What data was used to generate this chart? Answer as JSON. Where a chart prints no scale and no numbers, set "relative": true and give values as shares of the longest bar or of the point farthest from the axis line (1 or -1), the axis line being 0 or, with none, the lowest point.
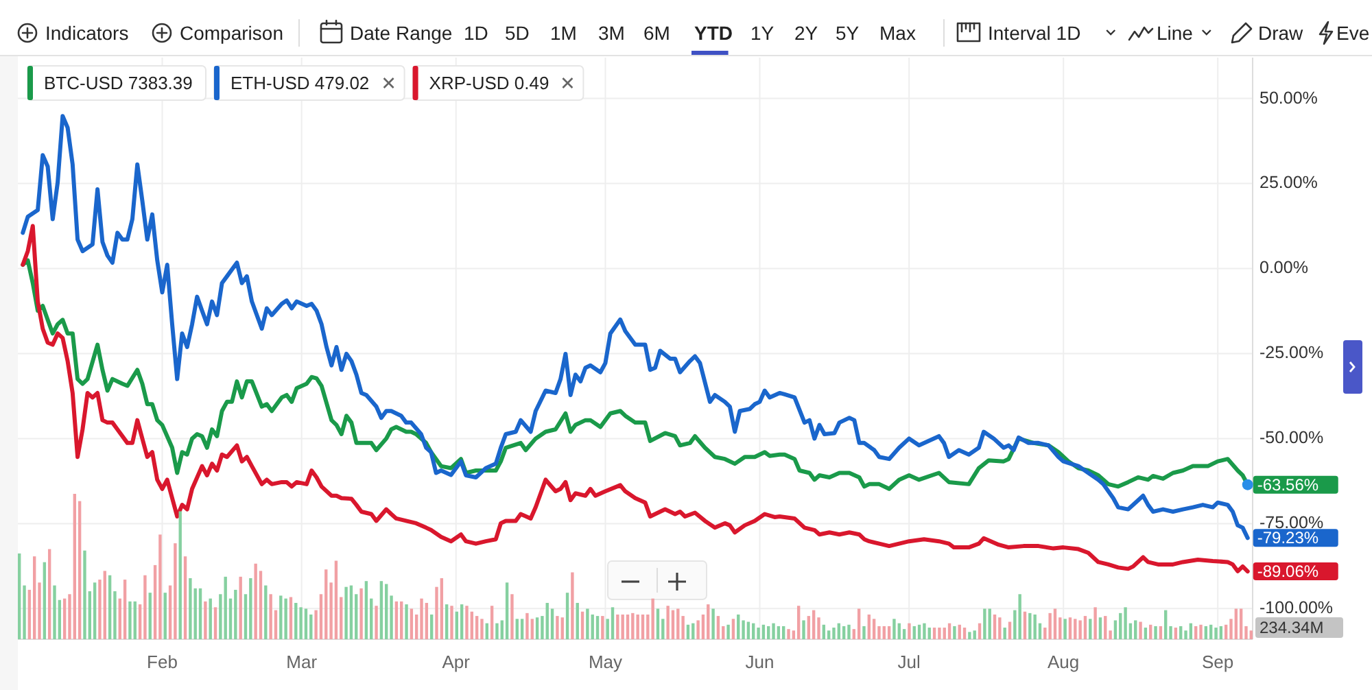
{
  "chart_data": [
    {
      "type": "line",
      "annotations": [
        "Indicators",
        "Comparison",
        "Date Range",
        "1D",
        "5D",
        "1M",
        "3M",
        "6M",
        "YTD",
        "1Y",
        "2Y",
        "5Y",
        "Max",
        "Interval 1D",
        "Line",
        "Draw",
        "Eve",
        {
          "text": "-63.56%",
          "x": "--09-07",
          "y": -63.56
        },
        {
          "text": "-79.23%",
          "x": "--09-07",
          "y": -79.23
        },
        {
          "text": "-89.06%",
          "x": "--09-07",
          "y": -89.06
        }
      ],
      "xlim": [
        "--01-03",
        "--09-08"
      ],
      "xticks": [
        {
          "value": "--02-01",
          "label": "Feb"
        },
        {
          "value": "--03-01",
          "label": "Mar"
        },
        {
          "value": "--04-01",
          "label": "Apr"
        },
        {
          "value": "--05-01",
          "label": "May"
        },
        {
          "value": "--06-01",
          "label": "Jun"
        },
        {
          "value": "--07-01",
          "label": "Jul"
        },
        {
          "value": "--08-01",
          "label": "Aug"
        },
        {
          "value": "--09-01",
          "label": "Sep"
        }
      ],
      "ylim": [
        -109,
        62
      ],
      "yticks": [
        {
          "value": 50,
          "label": "50.00%"
        },
        {
          "value": 25,
          "label": "25.00%"
        },
        {
          "value": 0,
          "label": "0.00%"
        },
        {
          "value": -25,
          "label": "-25.00%"
        },
        {
          "value": -50,
          "label": "-50.00%"
        },
        {
          "value": -75,
          "label": "-75.00%"
        },
        {
          "value": -100,
          "label": "-100.00%"
        }
      ],
      "grid": true,
      "legend": "top left",
      "series": [
        {
          "name": "BTC-USD 7383.39",
          "color": "#1a9a4a",
          "x": [
            "--01-04",
            "--01-05",
            "--01-06",
            "--01-07",
            "--01-08",
            "--01-09",
            "--01-10",
            "--01-11",
            "--01-12",
            "--01-13",
            "--01-14",
            "--01-15",
            "--01-16",
            "--01-17",
            "--01-19",
            "--01-20",
            "--01-21",
            "--01-22",
            "--01-24",
            "--01-25",
            "--01-27",
            "--01-28",
            "--01-29",
            "--01-30",
            "--01-31",
            "--02-01",
            "--02-03",
            "--02-04",
            "--02-05",
            "--02-06",
            "--02-07",
            "--02-08",
            "--02-09",
            "--02-10",
            "--02-11",
            "--02-12",
            "--02-13",
            "--02-14",
            "--02-15",
            "--02-16",
            "--02-17",
            "--02-18",
            "--02-19",
            "--02-21",
            "--02-22",
            "--02-23",
            "--02-25",
            "--02-26",
            "--02-27",
            "--02-28",
            "--03-02",
            "--03-03",
            "--03-04",
            "--03-05",
            "--03-07",
            "--03-08",
            "--03-09",
            "--03-10",
            "--03-11",
            "--03-12",
            "--03-14",
            "--03-15",
            "--03-16",
            "--03-18",
            "--03-19",
            "--03-20",
            "--03-22",
            "--03-23",
            "--03-24",
            "--03-26",
            "--03-27",
            "--03-29",
            "--03-31",
            "--04-02",
            "--04-03",
            "--04-05",
            "--04-07",
            "--04-09",
            "--04-10",
            "--04-11",
            "--04-14",
            "--04-15",
            "--04-17",
            "--04-19",
            "--04-21",
            "--04-23",
            "--04-24",
            "--04-25",
            "--04-27",
            "--04-28",
            "--04-30",
            "--05-02",
            "--05-04",
            "--05-05",
            "--05-07",
            "--05-09",
            "--05-10",
            "--05-13",
            "--05-15",
            "--05-16",
            "--05-18",
            "--05-19",
            "--05-21",
            "--05-23",
            "--05-25",
            "--05-27",
            "--05-29",
            "--05-31",
            "--06-02",
            "--06-03",
            "--06-05",
            "--06-06",
            "--06-08",
            "--06-09",
            "--06-11",
            "--06-12",
            "--06-13",
            "--06-15",
            "--06-17",
            "--06-19",
            "--06-21",
            "--06-22",
            "--06-23",
            "--06-25",
            "--06-27",
            "--06-29",
            "--07-01",
            "--07-03",
            "--07-07",
            "--07-09",
            "--07-13",
            "--07-15",
            "--07-17",
            "--07-20",
            "--07-21",
            "--07-23",
            "--07-26",
            "--07-29",
            "--07-31",
            "--08-02",
            "--08-04",
            "--08-06",
            "--08-08",
            "--08-10",
            "--08-12",
            "--08-14",
            "--08-16",
            "--08-18",
            "--08-19",
            "--08-21",
            "--08-23",
            "--08-25",
            "--08-27",
            "--08-30",
            "--09-01",
            "--09-03",
            "--09-05",
            "--09-06",
            "--09-07"
          ],
          "values": [
            1.1,
            2.4,
            -4.3,
            -12.4,
            -11.0,
            -15.1,
            -19.1,
            -16.4,
            -15.1,
            -19.1,
            -19.1,
            -32.5,
            -33.9,
            -32.5,
            -22.4,
            -29.8,
            -35.9,
            -32.5,
            -33.9,
            -34.5,
            -29.8,
            -33.9,
            -39.9,
            -39.9,
            -44.6,
            -46.0,
            -52.7,
            -60.1,
            -54.0,
            -54.7,
            -50.0,
            -48.7,
            -49.3,
            -52.7,
            -47.3,
            -49.3,
            -41.9,
            -39.2,
            -39.2,
            -33.2,
            -37.9,
            -33.2,
            -33.2,
            -40.6,
            -39.9,
            -41.9,
            -37.9,
            -37.2,
            -39.2,
            -35.2,
            -33.9,
            -31.9,
            -32.3,
            -34.5,
            -44.6,
            -46.0,
            -48.7,
            -43.3,
            -45.3,
            -51.3,
            -51.3,
            -51.3,
            -53.4,
            -50.0,
            -47.3,
            -46.6,
            -48.0,
            -48.0,
            -48.7,
            -51.3,
            -54.0,
            -58.1,
            -58.7,
            -56.0,
            -60.1,
            -59.4,
            -59.4,
            -59.4,
            -56.7,
            -52.7,
            -51.3,
            -53.4,
            -50.0,
            -48.0,
            -47.3,
            -42.6,
            -48.0,
            -46.0,
            -44.6,
            -44.6,
            -46.6,
            -42.6,
            -41.9,
            -43.3,
            -45.3,
            -45.3,
            -50.7,
            -48.4,
            -49.3,
            -52.0,
            -51.3,
            -49.3,
            -52.7,
            -55.4,
            -56.0,
            -57.4,
            -55.4,
            -55.4,
            -54.0,
            -55.1,
            -54.7,
            -54.7,
            -56.0,
            -59.4,
            -60.1,
            -62.1,
            -60.8,
            -61.4,
            -60.1,
            -60.1,
            -61.4,
            -64.1,
            -63.4,
            -63.4,
            -64.8,
            -62.1,
            -60.8,
            -62.1,
            -60.1,
            -62.8,
            -63.4,
            -58.7,
            -56.4,
            -56.7,
            -56.0,
            -50.0,
            -51.3,
            -52.0,
            -54.0,
            -56.7,
            -58.7,
            -59.4,
            -60.8,
            -63.4,
            -64.1,
            -62.8,
            -61.4,
            -62.1,
            -61.0,
            -61.8,
            -60.1,
            -59.4,
            -58.1,
            -58.1,
            -56.7,
            -56.0,
            -59.4,
            -60.8,
            -63.56
          ]
        },
        {
          "name": "ETH-USD 479.02",
          "color": "#1a66cc",
          "x": [
            "--01-04",
            "--01-05",
            "--01-07",
            "--01-08",
            "--01-09",
            "--01-10",
            "--01-11",
            "--01-12",
            "--01-13",
            "--01-14",
            "--01-15",
            "--01-16",
            "--01-18",
            "--01-19",
            "--01-20",
            "--01-21",
            "--01-22",
            "--01-23",
            "--01-24",
            "--01-25",
            "--01-26",
            "--01-27",
            "--01-28",
            "--01-29",
            "--01-30",
            "--01-31",
            "--02-01",
            "--02-02",
            "--02-03",
            "--02-04",
            "--02-05",
            "--02-06",
            "--02-07",
            "--02-08",
            "--02-09",
            "--02-10",
            "--02-11",
            "--02-12",
            "--02-13",
            "--02-14",
            "--02-16",
            "--02-17",
            "--02-18",
            "--02-19",
            "--02-21",
            "--02-22",
            "--02-23",
            "--02-25",
            "--02-26",
            "--02-27",
            "--02-28",
            "--03-02",
            "--03-03",
            "--03-04",
            "--03-05",
            "--03-06",
            "--03-07",
            "--03-08",
            "--03-09",
            "--03-10",
            "--03-11",
            "--03-12",
            "--03-13",
            "--03-14",
            "--03-16",
            "--03-17",
            "--03-18",
            "--03-19",
            "--03-21",
            "--03-22",
            "--03-23",
            "--03-25",
            "--03-26",
            "--03-27",
            "--03-28",
            "--03-29",
            "--03-31",
            "--04-02",
            "--04-03",
            "--04-05",
            "--04-07",
            "--04-09",
            "--04-10",
            "--04-11",
            "--04-13",
            "--04-14",
            "--04-16",
            "--04-17",
            "--04-19",
            "--04-21",
            "--04-22",
            "--04-23",
            "--04-24",
            "--04-25",
            "--04-26",
            "--04-27",
            "--04-28",
            "--04-30",
            "--05-01",
            "--05-02",
            "--05-04",
            "--05-05",
            "--05-07",
            "--05-09",
            "--05-10",
            "--05-11",
            "--05-12",
            "--05-14",
            "--05-15",
            "--05-16",
            "--05-18",
            "--05-19",
            "--05-20",
            "--05-22",
            "--05-23",
            "--05-25",
            "--05-26",
            "--05-27",
            "--05-28",
            "--05-30",
            "--05-31",
            "--06-01",
            "--06-02",
            "--06-03",
            "--06-05",
            "--06-06",
            "--06-08",
            "--06-10",
            "--06-11",
            "--06-12",
            "--06-13",
            "--06-14",
            "--06-16",
            "--06-17",
            "--06-19",
            "--06-20",
            "--06-21",
            "--06-22",
            "--06-24",
            "--06-25",
            "--06-27",
            "--06-29",
            "--07-01",
            "--07-03",
            "--07-07",
            "--07-08",
            "--07-09",
            "--07-11",
            "--07-13",
            "--07-15",
            "--07-16",
            "--07-18",
            "--07-20",
            "--07-21",
            "--07-22",
            "--07-23",
            "--07-25",
            "--07-27",
            "--07-29",
            "--07-31",
            "--08-01",
            "--08-04",
            "--08-06",
            "--08-08",
            "--08-09",
            "--08-11",
            "--08-12",
            "--08-14",
            "--08-15",
            "--08-17",
            "--08-18",
            "--08-19",
            "--08-21",
            "--08-23",
            "--08-25",
            "--08-27",
            "--08-29",
            "--08-31",
            "--09-01",
            "--09-03",
            "--09-04",
            "--09-05",
            "--09-06",
            "--09-07"
          ],
          "values": [
            10.5,
            15.2,
            17.2,
            33.3,
            30.0,
            14.5,
            25.3,
            44.8,
            41.4,
            30.6,
            8.5,
            5.1,
            7.1,
            23.3,
            7.8,
            3.8,
            1.7,
            10.5,
            8.5,
            8.5,
            14.5,
            30.6,
            19.9,
            8.5,
            15.9,
            2.4,
            -7.0,
            1.1,
            -16.4,
            -32.5,
            -19.1,
            -23.1,
            -16.4,
            -8.3,
            -12.4,
            -16.4,
            -9.7,
            -13.7,
            -4.3,
            -2.3,
            1.7,
            -4.3,
            -2.3,
            -9.7,
            -17.7,
            -11.7,
            -13.7,
            -10.4,
            -9.4,
            -11.7,
            -9.7,
            -11.0,
            -10.4,
            -12.4,
            -16.4,
            -23.1,
            -28.5,
            -23.1,
            -29.8,
            -25.1,
            -27.2,
            -31.2,
            -36.6,
            -37.2,
            -40.6,
            -43.9,
            -41.9,
            -41.9,
            -43.3,
            -45.3,
            -45.3,
            -48.7,
            -52.7,
            -54.0,
            -60.1,
            -59.4,
            -60.7,
            -56.7,
            -60.8,
            -61.4,
            -58.7,
            -57.4,
            -52.7,
            -48.7,
            -48.0,
            -44.6,
            -48.0,
            -41.9,
            -35.9,
            -36.6,
            -32.5,
            -25.1,
            -37.2,
            -31.2,
            -33.2,
            -29.2,
            -28.5,
            -30.5,
            -27.8,
            -19.1,
            -15.0,
            -18.4,
            -22.4,
            -22.4,
            -29.8,
            -29.2,
            -24.2,
            -26.5,
            -26.5,
            -30.5,
            -27.2,
            -25.8,
            -27.8,
            -39.2,
            -37.2,
            -39.2,
            -40.6,
            -48.0,
            -41.9,
            -41.3,
            -39.9,
            -39.2,
            -35.9,
            -37.9,
            -36.6,
            -37.0,
            -37.9,
            -45.3,
            -44.6,
            -50.0,
            -46.0,
            -48.7,
            -48.4,
            -45.3,
            -43.9,
            -44.6,
            -51.3,
            -51.3,
            -53.4,
            -55.4,
            -56.0,
            -52.7,
            -50.0,
            -52.0,
            -49.3,
            -51.3,
            -55.4,
            -53.4,
            -54.7,
            -52.7,
            -48.0,
            -50.0,
            -52.7,
            -52.0,
            -53.4,
            -49.7,
            -51.3,
            -51.3,
            -52.0,
            -55.4,
            -56.7,
            -58.1,
            -60.1,
            -62.1,
            -63.4,
            -67.5,
            -70.2,
            -70.8,
            -69.5,
            -66.8,
            -69.5,
            -71.5,
            -70.8,
            -71.5,
            -70.8,
            -70.2,
            -69.5,
            -70.2,
            -68.8,
            -69.5,
            -71.5,
            -75.5,
            -76.2,
            -79.23
          ]
        },
        {
          "name": "XRP-USD 0.49",
          "color": "#d9172d",
          "x": [
            "--01-04",
            "--01-05",
            "--01-06",
            "--01-07",
            "--01-08",
            "--01-09",
            "--01-10",
            "--01-11",
            "--01-12",
            "--01-13",
            "--01-14",
            "--01-15",
            "--01-16",
            "--01-17",
            "--01-18",
            "--01-19",
            "--01-20",
            "--01-21",
            "--01-22",
            "--01-23",
            "--01-25",
            "--01-26",
            "--01-27",
            "--01-28",
            "--01-29",
            "--01-30",
            "--01-31",
            "--02-01",
            "--02-02",
            "--02-04",
            "--02-05",
            "--02-06",
            "--02-07",
            "--02-09",
            "--02-10",
            "--02-11",
            "--02-12",
            "--02-13",
            "--02-14",
            "--02-16",
            "--02-17",
            "--02-18",
            "--02-19",
            "--02-21",
            "--02-22",
            "--02-23",
            "--02-25",
            "--02-26",
            "--02-27",
            "--02-28",
            "--03-02",
            "--03-03",
            "--03-04",
            "--03-05",
            "--03-07",
            "--03-08",
            "--03-09",
            "--03-11",
            "--03-12",
            "--03-13",
            "--03-15",
            "--03-16",
            "--03-18",
            "--03-19",
            "--03-20",
            "--03-22",
            "--03-24",
            "--03-26",
            "--03-27",
            "--03-29",
            "--03-31",
            "--04-02",
            "--04-03",
            "--04-05",
            "--04-07",
            "--04-09",
            "--04-10",
            "--04-11",
            "--04-13",
            "--04-14",
            "--04-16",
            "--04-17",
            "--04-19",
            "--04-21",
            "--04-22",
            "--04-23",
            "--04-24",
            "--04-25",
            "--04-27",
            "--04-28",
            "--04-29",
            "--05-01",
            "--05-04",
            "--05-05",
            "--05-07",
            "--05-09",
            "--05-10",
            "--05-13",
            "--05-15",
            "--05-16",
            "--05-17",
            "--05-19",
            "--05-21",
            "--05-23",
            "--05-25",
            "--05-26",
            "--05-27",
            "--05-29",
            "--05-31",
            "--06-02",
            "--06-04",
            "--06-05",
            "--06-08",
            "--06-10",
            "--06-12",
            "--06-13",
            "--06-15",
            "--06-17",
            "--06-19",
            "--06-21",
            "--06-22",
            "--06-23",
            "--06-25",
            "--06-27",
            "--06-29",
            "--07-01",
            "--07-04",
            "--07-07",
            "--07-09",
            "--07-10",
            "--07-13",
            "--07-15",
            "--07-16",
            "--07-19",
            "--07-21",
            "--07-24",
            "--07-27",
            "--07-30",
            "--08-01",
            "--08-04",
            "--08-06",
            "--08-08",
            "--08-10",
            "--08-12",
            "--08-14",
            "--08-15",
            "--08-17",
            "--08-18",
            "--08-20",
            "--08-23",
            "--08-25",
            "--08-28",
            "--08-31",
            "--09-03",
            "--09-04",
            "--09-05",
            "--09-06",
            "--09-07"
          ],
          "values": [
            1.1,
            5.1,
            12.5,
            -9.7,
            -17.7,
            -21.8,
            -22.4,
            -19.1,
            -20.4,
            -27.2,
            -36.6,
            -55.4,
            -47.3,
            -36.6,
            -37.9,
            -36.6,
            -44.6,
            -45.3,
            -45.3,
            -47.3,
            -51.3,
            -51.3,
            -44.6,
            -50.0,
            -55.4,
            -54.0,
            -62.1,
            -64.8,
            -62.1,
            -72.9,
            -69.5,
            -70.8,
            -64.8,
            -58.1,
            -60.8,
            -57.4,
            -59.4,
            -54.7,
            -55.4,
            -52.0,
            -56.7,
            -55.4,
            -58.1,
            -63.4,
            -62.1,
            -63.4,
            -62.8,
            -62.8,
            -64.1,
            -62.8,
            -63.4,
            -59.4,
            -61.4,
            -64.1,
            -66.8,
            -66.8,
            -67.5,
            -67.7,
            -69.5,
            -71.5,
            -72.2,
            -74.2,
            -70.8,
            -72.2,
            -73.5,
            -74.2,
            -74.9,
            -76.2,
            -76.9,
            -78.9,
            -80.2,
            -78.2,
            -80.2,
            -80.9,
            -80.2,
            -79.6,
            -74.9,
            -74.2,
            -74.2,
            -72.2,
            -73.5,
            -70.2,
            -62.1,
            -65.5,
            -64.8,
            -62.8,
            -68.1,
            -66.1,
            -66.8,
            -64.8,
            -66.8,
            -65.5,
            -63.7,
            -65.5,
            -67.5,
            -68.8,
            -72.9,
            -70.8,
            -72.2,
            -71.5,
            -72.9,
            -71.8,
            -74.2,
            -76.2,
            -74.9,
            -75.5,
            -77.6,
            -75.5,
            -74.2,
            -72.2,
            -73.1,
            -72.9,
            -73.5,
            -76.2,
            -76.9,
            -78.2,
            -77.6,
            -78.2,
            -77.6,
            -78.2,
            -79.6,
            -80.2,
            -80.9,
            -81.6,
            -80.9,
            -80.2,
            -79.6,
            -80.2,
            -80.9,
            -82.0,
            -82.0,
            -80.9,
            -79.3,
            -81.2,
            -82.0,
            -81.6,
            -81.6,
            -82.3,
            -82.0,
            -82.5,
            -83.6,
            -86.3,
            -87.0,
            -87.9,
            -88.3,
            -87.6,
            -84.9,
            -86.3,
            -87.0,
            -87.0,
            -86.3,
            -85.6,
            -86.0,
            -86.3,
            -87.0,
            -89.0,
            -87.6,
            -89.06
          ]
        }
      ]
    },
    {
      "type": "bar",
      "relative": true,
      "annotations": [
        "234.34M"
      ],
      "categories": [
        null,
        null,
        null,
        null,
        null,
        null,
        null,
        null,
        null,
        null,
        null,
        null,
        null,
        null,
        null,
        null,
        null,
        null,
        null,
        null,
        null,
        null,
        null,
        null,
        null,
        null,
        null,
        null,
        null,
        null,
        null,
        null,
        null,
        null,
        null,
        null,
        null,
        null,
        null,
        null,
        null,
        null,
        null,
        null,
        null,
        null,
        null,
        null,
        null,
        null,
        null,
        null,
        null,
        null,
        null,
        null,
        null,
        null,
        null,
        null,
        null,
        null,
        null,
        null,
        null,
        null,
        null,
        null,
        null,
        null,
        null,
        null,
        null,
        null,
        null,
        null,
        null,
        null,
        null,
        null,
        null,
        null,
        null,
        null,
        null,
        null,
        null,
        null,
        null,
        null,
        null,
        null,
        null,
        null,
        null,
        null,
        null,
        null,
        null,
        null,
        null,
        null,
        null,
        null,
        null,
        null,
        null,
        null,
        null,
        null,
        null,
        null,
        null,
        null,
        null,
        null,
        null,
        null,
        null,
        null,
        null,
        null,
        null,
        null,
        null,
        null,
        null,
        null,
        null,
        null,
        null,
        null,
        null,
        null,
        null,
        null,
        null,
        null,
        null,
        null,
        null,
        null,
        null,
        null,
        null,
        null,
        null,
        null,
        null,
        null,
        null,
        null,
        null,
        null,
        null,
        null,
        null,
        null,
        null,
        null,
        null,
        null,
        null,
        null,
        null,
        null,
        null,
        null,
        null,
        null,
        null,
        null,
        null,
        null,
        null,
        null,
        null,
        null,
        null,
        null,
        null,
        null,
        null,
        null,
        null,
        null,
        null,
        null,
        null,
        null,
        null,
        null,
        null,
        null,
        null,
        null,
        null,
        null,
        null,
        null,
        null,
        null,
        null,
        null,
        null,
        null,
        null,
        null,
        null,
        null,
        null,
        null,
        null,
        null,
        null,
        null,
        null,
        null,
        null,
        null,
        null,
        null,
        null,
        null,
        null,
        null,
        null,
        null,
        null,
        null,
        null,
        null,
        null,
        null,
        null,
        null,
        null,
        null,
        null,
        null,
        null,
        null,
        null,
        null,
        null,
        null
      ],
      "values": [
        0.59,
        0.37,
        0.34,
        0.57,
        0.39,
        0.53,
        0.62,
        0.37,
        0.27,
        0.28,
        0.31,
        1.0,
        0.95,
        0.61,
        0.33,
        0.39,
        0.41,
        0.47,
        0.44,
        0.33,
        0.28,
        0.41,
        0.26,
        0.26,
        0.24,
        0.44,
        0.32,
        0.51,
        0.72,
        0.32,
        0.37,
        0.66,
        0.88,
        0.57,
        0.42,
        0.35,
        0.35,
        0.26,
        0.28,
        0.22,
        0.31,
        0.43,
        0.28,
        0.34,
        0.43,
        0.31,
        0.42,
        0.52,
        0.47,
        0.37,
        0.31,
        0.2,
        0.3,
        0.28,
        0.29,
        0.25,
        0.22,
        0.21,
        0.17,
        0.2,
        0.31,
        0.48,
        0.39,
        0.54,
        0.29,
        0.36,
        0.37,
        0.31,
        0.35,
        0.4,
        0.28,
        0.23,
        0.4,
        0.38,
        0.3,
        0.26,
        0.26,
        0.24,
        0.21,
        0.17,
        0.28,
        0.25,
        0.17,
        0.36,
        0.42,
        0.24,
        0.23,
        0.19,
        0.24,
        0.23,
        0.19,
        0.16,
        0.14,
        0.11,
        0.23,
        0.11,
        0.13,
        0.39,
        0.31,
        0.14,
        0.14,
        0.18,
        0.14,
        0.15,
        0.16,
        0.25,
        0.21,
        0.16,
        0.15,
        0.32,
        0.46,
        0.25,
        0.19,
        0.21,
        0.17,
        0.16,
        0.16,
        0.14,
        0.22,
        0.17,
        0.17,
        0.17,
        0.18,
        0.17,
        0.17,
        0.17,
        0.28,
        0.21,
        0.14,
        0.23,
        0.2,
        0.21,
        0.16,
        0.1,
        0.11,
        0.13,
        0.17,
        0.24,
        0.21,
        0.16,
        0.09,
        0.1,
        0.14,
        0.17,
        0.13,
        0.12,
        0.11,
        0.08,
        0.1,
        0.09,
        0.11,
        0.09,
        0.09,
        0.07,
        0.06,
        0.23,
        0.13,
        0.16,
        0.2,
        0.15,
        0.1,
        0.06,
        0.08,
        0.11,
        0.09,
        0.1,
        0.07,
        0.21,
        0.09,
        0.17,
        0.14,
        0.09,
        0.09,
        0.09,
        0.14,
        0.11,
        0.07,
        0.11,
        0.09,
        0.1,
        0.11,
        0.08,
        0.08,
        0.08,
        0.08,
        0.11,
        0.09,
        0.1,
        0.08,
        0.05,
        0.06,
        0.11,
        0.21,
        0.21,
        0.17,
        0.15,
        0.08,
        0.12,
        0.2,
        0.31,
        0.19,
        0.18,
        0.17,
        0.11,
        0.08,
        0.18,
        0.21,
        0.15,
        0.14,
        0.15,
        0.14,
        0.13,
        0.16,
        0.14,
        0.22,
        0.15,
        0.16,
        0.06,
        0.13,
        0.18,
        0.22,
        0.11,
        0.13,
        0.12,
        0.08,
        0.1,
        0.09,
        0.09,
        0.2,
        0.09,
        0.08,
        0.09,
        0.06,
        0.11,
        0.09,
        0.1,
        0.09,
        0.1,
        0.08,
        0.09,
        0.1,
        0.14,
        0.21,
        0.21,
        0.09,
        0.06
      ],
      "colors": [
        "#86d0a0",
        "#86d0a0",
        "#f1a0a4",
        "#f1a0a4",
        "#f1a0a4",
        "#86d0a0",
        "#f1a0a4",
        "#86d0a0",
        "#86d0a0",
        "#f1a0a4",
        "#f1a0a4",
        "#f1a0a4",
        "#f1a0a4",
        "#86d0a0",
        "#86d0a0",
        "#86d0a0",
        "#f1a0a4",
        "#f1a0a4",
        "#86d0a0",
        "#86d0a0",
        "#f1a0a4",
        "#f1a0a4",
        "#86d0a0",
        "#86d0a0",
        "#f1a0a4",
        "#f1a0a4",
        "#86d0a0",
        "#f1a0a4",
        "#f1a0a4",
        "#86d0a0",
        "#f1a0a4",
        "#f1a0a4",
        "#86d0a0",
        "#f1a0a4",
        "#86d0a0",
        "#86d0a0",
        "#86d0a0",
        "#f1a0a4",
        "#86d0a0",
        "#f1a0a4",
        "#86d0a0",
        "#86d0a0",
        "#86d0a0",
        "#86d0a0",
        "#f1a0a4",
        "#86d0a0",
        "#86d0a0",
        "#f1a0a4",
        "#f1a0a4",
        "#86d0a0",
        "#f1a0a4",
        "#f1a0a4",
        "#86d0a0",
        "#86d0a0",
        "#f1a0a4",
        "#86d0a0",
        "#86d0a0",
        "#86d0a0",
        "#86d0a0",
        "#f1a0a4",
        "#f1a0a4",
        "#f1a0a4",
        "#f1a0a4",
        "#f1a0a4",
        "#f1a0a4",
        "#86d0a0",
        "#86d0a0",
        "#86d0a0",
        "#f1a0a4",
        "#86d0a0",
        "#86d0a0",
        "#f1a0a4",
        "#86d0a0",
        "#86d0a0",
        "#86d0a0",
        "#f1a0a4",
        "#f1a0a4",
        "#86d0a0",
        "#f1a0a4",
        "#f1a0a4",
        "#f1a0a4",
        "#f1a0a4",
        "#86d0a0",
        "#f1a0a4",
        "#f1a0a4",
        "#86d0a0",
        "#f1a0a4",
        "#86d0a0",
        "#86d0a0",
        "#f1a0a4",
        "#f1a0a4",
        "#f1a0a4",
        "#f1a0a4",
        "#86d0a0",
        "#f1a0a4",
        "#86d0a0",
        "#86d0a0",
        "#86d0a0",
        "#f1a0a4",
        "#86d0a0",
        "#86d0a0",
        "#f1a0a4",
        "#f1a0a4",
        "#86d0a0",
        "#86d0a0",
        "#86d0a0",
        "#86d0a0",
        "#f1a0a4",
        "#f1a0a4",
        "#86d0a0",
        "#f1a0a4",
        "#86d0a0",
        "#f1a0a4",
        "#86d0a0",
        "#86d0a0",
        "#86d0a0",
        "#f1a0a4",
        "#86d0a0",
        "#86d0a0",
        "#f1a0a4",
        "#f1a0a4",
        "#f1a0a4",
        "#f1a0a4",
        "#f1a0a4",
        "#f1a0a4",
        "#f1a0a4",
        "#f1a0a4",
        "#86d0a0",
        "#86d0a0",
        "#f1a0a4",
        "#f1a0a4",
        "#f1a0a4",
        "#f1a0a4",
        "#86d0a0",
        "#86d0a0",
        "#f1a0a4",
        "#f1a0a4",
        "#f1a0a4",
        "#86d0a0",
        "#f1a0a4",
        "#f1a0a4",
        "#86d0a0",
        "#f1a0a4",
        "#86d0a0",
        "#86d0a0",
        "#86d0a0",
        "#86d0a0",
        "#86d0a0",
        "#86d0a0",
        "#86d0a0",
        "#86d0a0",
        "#86d0a0",
        "#86d0a0",
        "#f1a0a4",
        "#f1a0a4",
        "#f1a0a4",
        "#86d0a0",
        "#f1a0a4",
        "#f1a0a4",
        "#f1a0a4",
        "#86d0a0",
        "#86d0a0",
        "#86d0a0",
        "#86d0a0",
        "#86d0a0",
        "#86d0a0",
        "#f1a0a4",
        "#f1a0a4",
        "#86d0a0",
        "#f1a0a4",
        "#f1a0a4",
        "#f1a0a4",
        "#f1a0a4",
        "#f1a0a4",
        "#86d0a0",
        "#86d0a0",
        "#86d0a0",
        "#f1a0a4",
        "#86d0a0",
        "#86d0a0",
        "#86d0a0",
        "#86d0a0",
        "#f1a0a4",
        "#f1a0a4",
        "#f1a0a4",
        "#f1a0a4",
        "#86d0a0",
        "#f1a0a4",
        "#f1a0a4",
        "#86d0a0",
        "#86d0a0",
        "#f1a0a4",
        "#86d0a0",
        "#86d0a0",
        "#f1a0a4",
        "#f1a0a4",
        "#86d0a0",
        "#f1a0a4",
        "#86d0a0",
        "#86d0a0",
        "#f1a0a4",
        "#86d0a0",
        "#86d0a0",
        "#86d0a0",
        "#f1a0a4",
        "#f1a0a4",
        "#f1a0a4",
        "#f1a0a4",
        "#86d0a0",
        "#f1a0a4",
        "#f1a0a4",
        "#f1a0a4",
        "#f1a0a4",
        "#86d0a0",
        "#f1a0a4",
        "#86d0a0",
        "#f1a0a4",
        "#f1a0a4",
        "#86d0a0",
        "#86d0a0",
        "#86d0a0",
        "#86d0a0",
        "#86d0a0",
        "#f1a0a4",
        "#86d0a0",
        "#f1a0a4",
        "#86d0a0",
        "#f1a0a4",
        "#86d0a0",
        "#86d0a0",
        "#f1a0a4",
        "#86d0a0",
        "#86d0a0",
        "#86d0a0",
        "#f1a0a4",
        "#f1a0a4",
        "#86d0a0",
        "#86d0a0",
        "#86d0a0",
        "#86d0a0",
        "#f1a0a4",
        "#f1a0a4",
        "#f1a0a4",
        "#f1a0a4",
        "#f1a0a4",
        "#f1a0a4"
      ]
    }
  ]
}
